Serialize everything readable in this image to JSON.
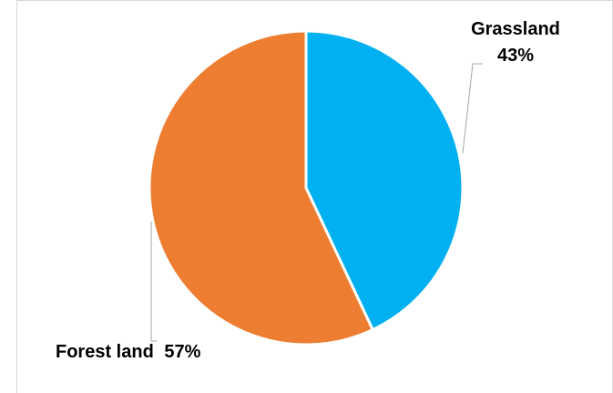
{
  "chart_data": {
    "type": "pie",
    "title": "",
    "slices": [
      {
        "name": "Grassland",
        "value": 43,
        "value_label": "43%",
        "color": "#00B0F0"
      },
      {
        "name": "Forest land",
        "value": 57,
        "value_label": "57%",
        "color": "#ED7D31"
      }
    ],
    "start_angle": "12 o'clock",
    "direction": "clockwise",
    "legend": "none",
    "data_labels": "outside with leader lines"
  }
}
